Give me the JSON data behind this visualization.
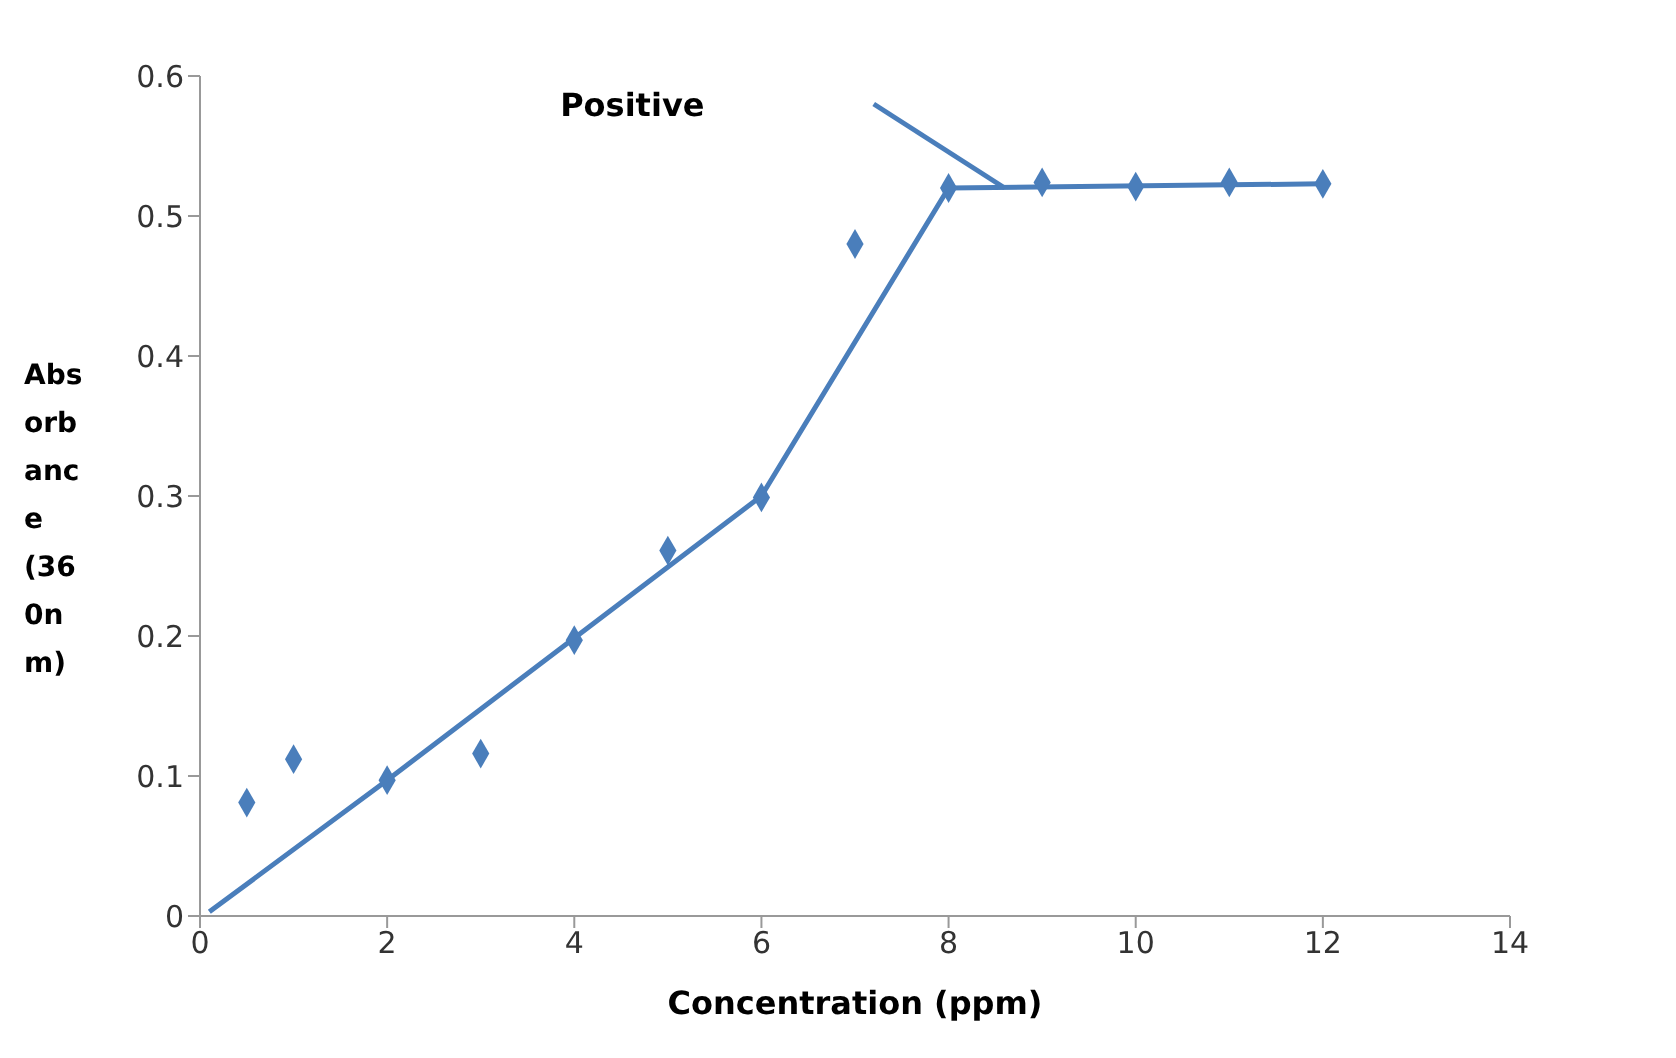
{
  "chart_data": {
    "type": "scatter",
    "xlabel": "Concentration (ppm)",
    "ylabel": "Absorbance (360nm)",
    "xlim": [
      0,
      14
    ],
    "xticks": [
      0,
      2,
      4,
      6,
      8,
      10,
      12,
      14
    ],
    "ylim": [
      0,
      0.6
    ],
    "yticks": [
      0,
      0.1,
      0.2,
      0.3,
      0.4,
      0.5,
      0.6
    ],
    "grid": false,
    "legend": false,
    "marker": "diamond",
    "series": [
      {
        "color": "#4a7ebb",
        "x": [
          0.5,
          1,
          2,
          3,
          4,
          5,
          6,
          7,
          8,
          9,
          10,
          11,
          12
        ],
        "values": [
          0.081,
          0.112,
          0.097,
          0.116,
          0.197,
          0.261,
          0.299,
          0.48,
          0.52,
          0.524,
          0.521,
          0.524,
          0.523
        ]
      },
      {
        "type": "line",
        "color": "#4a7ebb",
        "x": [
          0.1,
          2,
          6,
          8,
          12
        ],
        "values": [
          0.003,
          0.097,
          0.3,
          0.52,
          0.523
        ],
        "marker": "none",
        "line_style": "solid"
      },
      {
        "type": "line",
        "color": "#4a7ebb",
        "x": [
          7.2,
          8.6
        ],
        "values": [
          0.58,
          0.52
        ],
        "marker": "none",
        "line_style": "solid"
      }
    ],
    "annotations": [
      "Positive"
    ]
  }
}
